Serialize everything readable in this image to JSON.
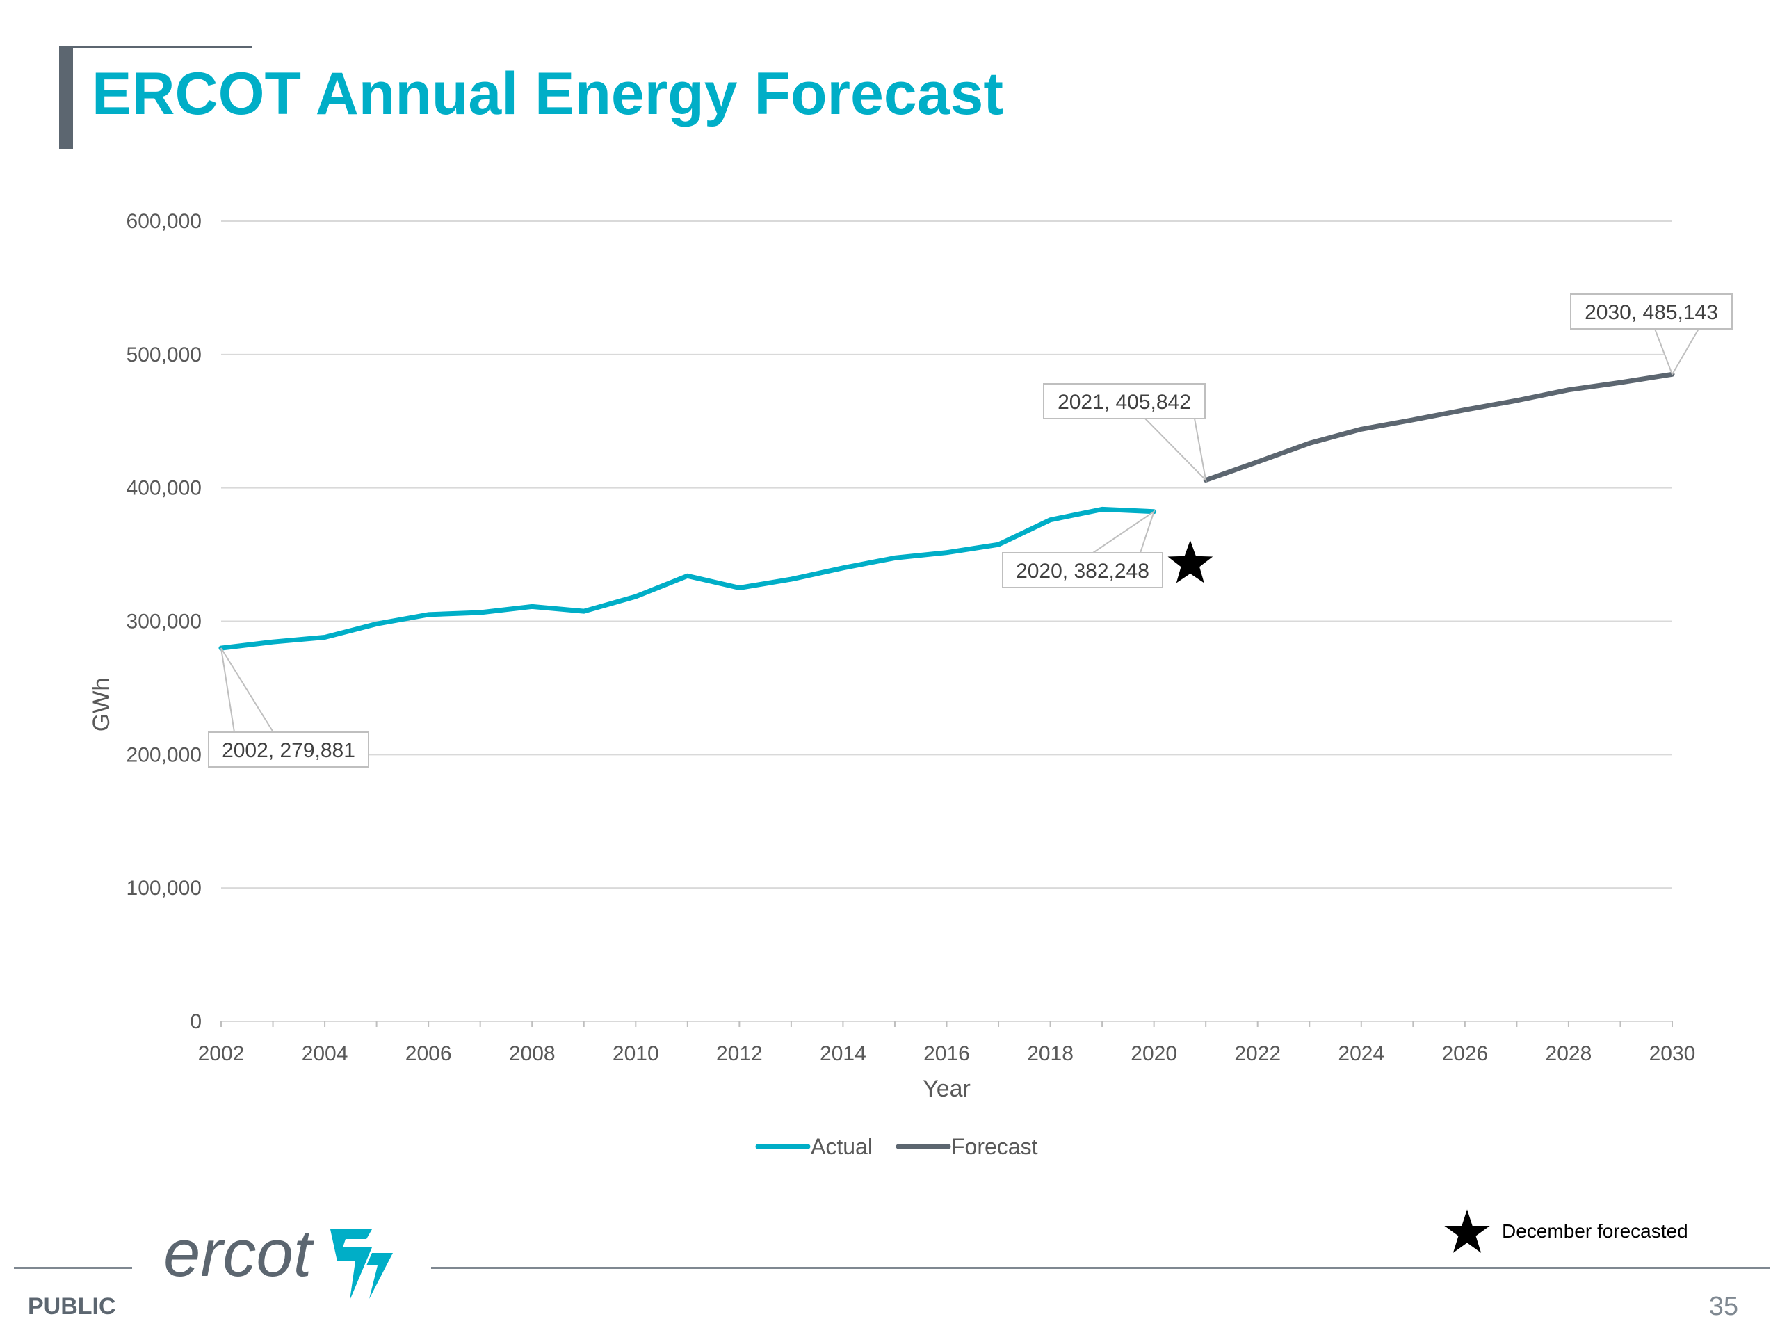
{
  "slide": {
    "title": "ERCOT Annual Energy Forecast",
    "classification": "PUBLIC",
    "page_number": "35",
    "footnote": "December forecasted",
    "footnote_icon": "star-icon",
    "logo_text": "ercot",
    "logo_icon": "ercot-lightning-logo-icon"
  },
  "colors": {
    "title": "#00aec7",
    "actual": "#00aec7",
    "forecast": "#5c6670",
    "grid": "#d9d9d9"
  },
  "chart_data": {
    "type": "line",
    "xlabel": "Year",
    "ylabel": "GWh",
    "xlim": [
      2002,
      2030
    ],
    "ylim": [
      0,
      600000
    ],
    "x_ticks": [
      "2002",
      "2004",
      "2006",
      "2008",
      "2010",
      "2012",
      "2014",
      "2016",
      "2018",
      "2020",
      "2022",
      "2024",
      "2026",
      "2028",
      "2030"
    ],
    "y_ticks": [
      "0",
      "100,000",
      "200,000",
      "300,000",
      "400,000",
      "500,000",
      "600,000"
    ],
    "grid": true,
    "legend_position": "bottom",
    "series": [
      {
        "name": "Actual",
        "x": [
          2002,
          2003,
          2004,
          2005,
          2006,
          2007,
          2008,
          2009,
          2010,
          2011,
          2012,
          2013,
          2014,
          2015,
          2016,
          2017,
          2018,
          2019,
          2020
        ],
        "y": [
          279881,
          284500,
          288000,
          298000,
          305000,
          306500,
          311000,
          307500,
          318500,
          334000,
          325000,
          331500,
          340000,
          347500,
          351500,
          357500,
          376000,
          384000,
          382248
        ]
      },
      {
        "name": "Forecast",
        "x": [
          2021,
          2022,
          2023,
          2024,
          2025,
          2026,
          2027,
          2028,
          2029,
          2030
        ],
        "y": [
          405842,
          419500,
          433500,
          444000,
          451000,
          458500,
          465500,
          473500,
          479000,
          485143
        ]
      }
    ],
    "annotations": [
      {
        "text": "2002, 279,881",
        "x": 2002,
        "y": 279881
      },
      {
        "text": "2020, 382,248",
        "x": 2020,
        "y": 382248
      },
      {
        "text": "2021, 405,842",
        "x": 2021,
        "y": 405842
      },
      {
        "text": "2030, 485,143",
        "x": 2030,
        "y": 485143
      }
    ],
    "markers": [
      {
        "symbol": "star",
        "x": 2020.7,
        "y": 343000,
        "meaning": "December forecasted"
      }
    ]
  }
}
